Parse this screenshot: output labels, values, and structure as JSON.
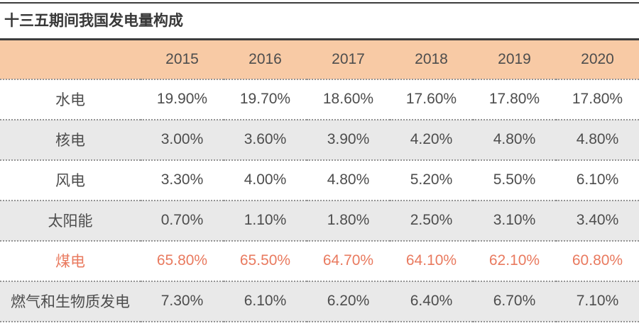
{
  "title": "十三五期间我国发电量构成",
  "colors": {
    "header_bg": "#f8caa5",
    "alt_row_bg": "#e9e9e9",
    "highlight": "#e97a5f",
    "text": "#4d4d4d",
    "title_text": "#383838",
    "rule": "#3d3d3d",
    "dotted": "#949494"
  },
  "table": {
    "years": [
      "2015",
      "2016",
      "2017",
      "2018",
      "2019",
      "2020"
    ],
    "rows": [
      {
        "label": "水电",
        "highlight": false,
        "values": [
          "19.90%",
          "19.70%",
          "18.60%",
          "17.60%",
          "17.80%",
          "17.80%"
        ]
      },
      {
        "label": "核电",
        "highlight": false,
        "values": [
          "3.00%",
          "3.60%",
          "3.90%",
          "4.20%",
          "4.80%",
          "4.80%"
        ]
      },
      {
        "label": "风电",
        "highlight": false,
        "values": [
          "3.30%",
          "4.00%",
          "4.80%",
          "5.20%",
          "5.50%",
          "6.10%"
        ]
      },
      {
        "label": "太阳能",
        "highlight": false,
        "values": [
          "0.70%",
          "1.10%",
          "1.80%",
          "2.50%",
          "3.10%",
          "3.40%"
        ]
      },
      {
        "label": "煤电",
        "highlight": true,
        "values": [
          "65.80%",
          "65.50%",
          "64.70%",
          "64.10%",
          "62.10%",
          "60.80%"
        ]
      },
      {
        "label": "燃气和生物质发电",
        "highlight": false,
        "values": [
          "7.30%",
          "6.10%",
          "6.20%",
          "6.40%",
          "6.70%",
          "7.10%"
        ]
      }
    ]
  },
  "chart_data": {
    "type": "table",
    "title": "十三五期间我国发电量构成",
    "unit": "%",
    "columns": [
      "2015",
      "2016",
      "2017",
      "2018",
      "2019",
      "2020"
    ],
    "series": [
      {
        "name": "水电",
        "values": [
          19.9,
          19.7,
          18.6,
          17.6,
          17.8,
          17.8
        ]
      },
      {
        "name": "核电",
        "values": [
          3.0,
          3.6,
          3.9,
          4.2,
          4.8,
          4.8
        ]
      },
      {
        "name": "风电",
        "values": [
          3.3,
          4.0,
          4.8,
          5.2,
          5.5,
          6.1
        ]
      },
      {
        "name": "太阳能",
        "values": [
          0.7,
          1.1,
          1.8,
          2.5,
          3.1,
          3.4
        ]
      },
      {
        "name": "煤电",
        "values": [
          65.8,
          65.5,
          64.7,
          64.1,
          62.1,
          60.8
        ]
      },
      {
        "name": "燃气和生物质发电",
        "values": [
          7.3,
          6.1,
          6.2,
          6.4,
          6.7,
          7.1
        ]
      }
    ]
  }
}
